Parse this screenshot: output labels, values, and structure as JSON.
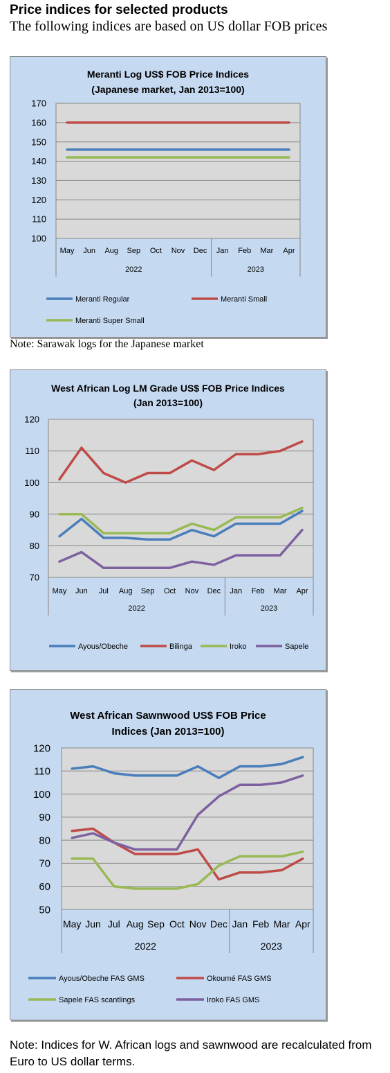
{
  "header": {
    "title": "Price indices for selected products",
    "subtitle": "The following indices are based on US dollar FOB prices"
  },
  "notes": {
    "note1": "Note: Sarawak logs for the Japanese market",
    "note2": "Note: Indices for W. African logs and sawnwood are recalculated from Euro to US dollar terms."
  },
  "chart_data": [
    {
      "type": "line",
      "title": "Meranti Log US$ FOB Price Indices",
      "subtitle": "(Japanese market, Jan 2013=100)",
      "categories": [
        "May",
        "Jun",
        "Aug",
        "Sep",
        "Oct",
        "Nov",
        "Dec",
        "Jan",
        "Feb",
        "Mar",
        "Apr"
      ],
      "groups": [
        {
          "label": "2022",
          "count": 7
        },
        {
          "label": "2023",
          "count": 4
        }
      ],
      "ylim": [
        100,
        170
      ],
      "yticks": [
        100,
        110,
        120,
        130,
        140,
        150,
        160,
        170
      ],
      "grid": true,
      "legend": "bottom",
      "series": [
        {
          "name": "Meranti Regular",
          "color": "#4a7ebb",
          "values": [
            146,
            146,
            146,
            146,
            146,
            146,
            146,
            146,
            146,
            146,
            146
          ]
        },
        {
          "name": "Meranti Small",
          "color": "#be4b48",
          "values": [
            160,
            160,
            160,
            160,
            160,
            160,
            160,
            160,
            160,
            160,
            160
          ]
        },
        {
          "name": "Meranti Super Small",
          "color": "#98b954",
          "values": [
            142,
            142,
            142,
            142,
            142,
            142,
            142,
            142,
            142,
            142,
            142
          ]
        }
      ]
    },
    {
      "type": "line",
      "title": "West African Log LM Grade US$ FOB Price Indices",
      "subtitle": "(Jan 2013=100)",
      "categories": [
        "May",
        "Jun",
        "Jul",
        "Aug",
        "Sep",
        "Oct",
        "Nov",
        "Dec",
        "Jan",
        "Feb",
        "Mar",
        "Apr"
      ],
      "groups": [
        {
          "label": "2022",
          "count": 8
        },
        {
          "label": "2023",
          "count": 4
        }
      ],
      "ylim": [
        70,
        120
      ],
      "yticks": [
        70,
        80,
        90,
        100,
        110,
        120
      ],
      "grid": true,
      "legend": "bottom",
      "series": [
        {
          "name": "Ayous/Obeche",
          "color": "#4a7ebb",
          "values": [
            83,
            88.5,
            82.5,
            82.5,
            82,
            82,
            85,
            83,
            87,
            87,
            87,
            91
          ]
        },
        {
          "name": "Bilinga",
          "color": "#be4b48",
          "values": [
            101,
            111,
            103,
            100,
            103,
            103,
            107,
            104,
            109,
            109,
            110,
            113
          ]
        },
        {
          "name": "Iroko",
          "color": "#98b954",
          "values": [
            90,
            90,
            84,
            84,
            84,
            84,
            87,
            85,
            89,
            89,
            89,
            92
          ]
        },
        {
          "name": "Sapele",
          "color": "#7d60a0",
          "values": [
            75,
            78,
            73,
            73,
            73,
            73,
            75,
            74,
            77,
            77,
            77,
            85
          ]
        }
      ]
    },
    {
      "type": "line",
      "title": "West African Sawnwood US$ FOB Price",
      "subtitle": "Indices (Jan 2013=100)",
      "categories": [
        "May",
        "Jun",
        "Jul",
        "Aug",
        "Sep",
        "Oct",
        "Nov",
        "Dec",
        "Jan",
        "Feb",
        "Mar",
        "Apr"
      ],
      "groups": [
        {
          "label": "2022",
          "count": 8
        },
        {
          "label": "2023",
          "count": 4
        }
      ],
      "ylim": [
        50,
        120
      ],
      "yticks": [
        50,
        60,
        70,
        80,
        90,
        100,
        110,
        120
      ],
      "grid": true,
      "legend": "bottom",
      "series": [
        {
          "name": "Ayous/Obeche  FAS GMS",
          "color": "#4a7ebb",
          "values": [
            111,
            112,
            109,
            108,
            108,
            108,
            112,
            107,
            112,
            112,
            113,
            116
          ]
        },
        {
          "name": "Okoumé  FAS GMS",
          "color": "#be4b48",
          "values": [
            84,
            85,
            79,
            74,
            74,
            74,
            76,
            63,
            66,
            66,
            67,
            72
          ]
        },
        {
          "name": "Sapele FAS scantlings",
          "color": "#98b954",
          "values": [
            72,
            72,
            60,
            59,
            59,
            59,
            61,
            69,
            73,
            73,
            73,
            75
          ]
        },
        {
          "name": "Iroko FAS GMS",
          "color": "#7d60a0",
          "values": [
            81,
            83,
            79,
            76,
            76,
            76,
            91,
            99,
            104,
            104,
            105,
            108
          ]
        }
      ]
    }
  ]
}
